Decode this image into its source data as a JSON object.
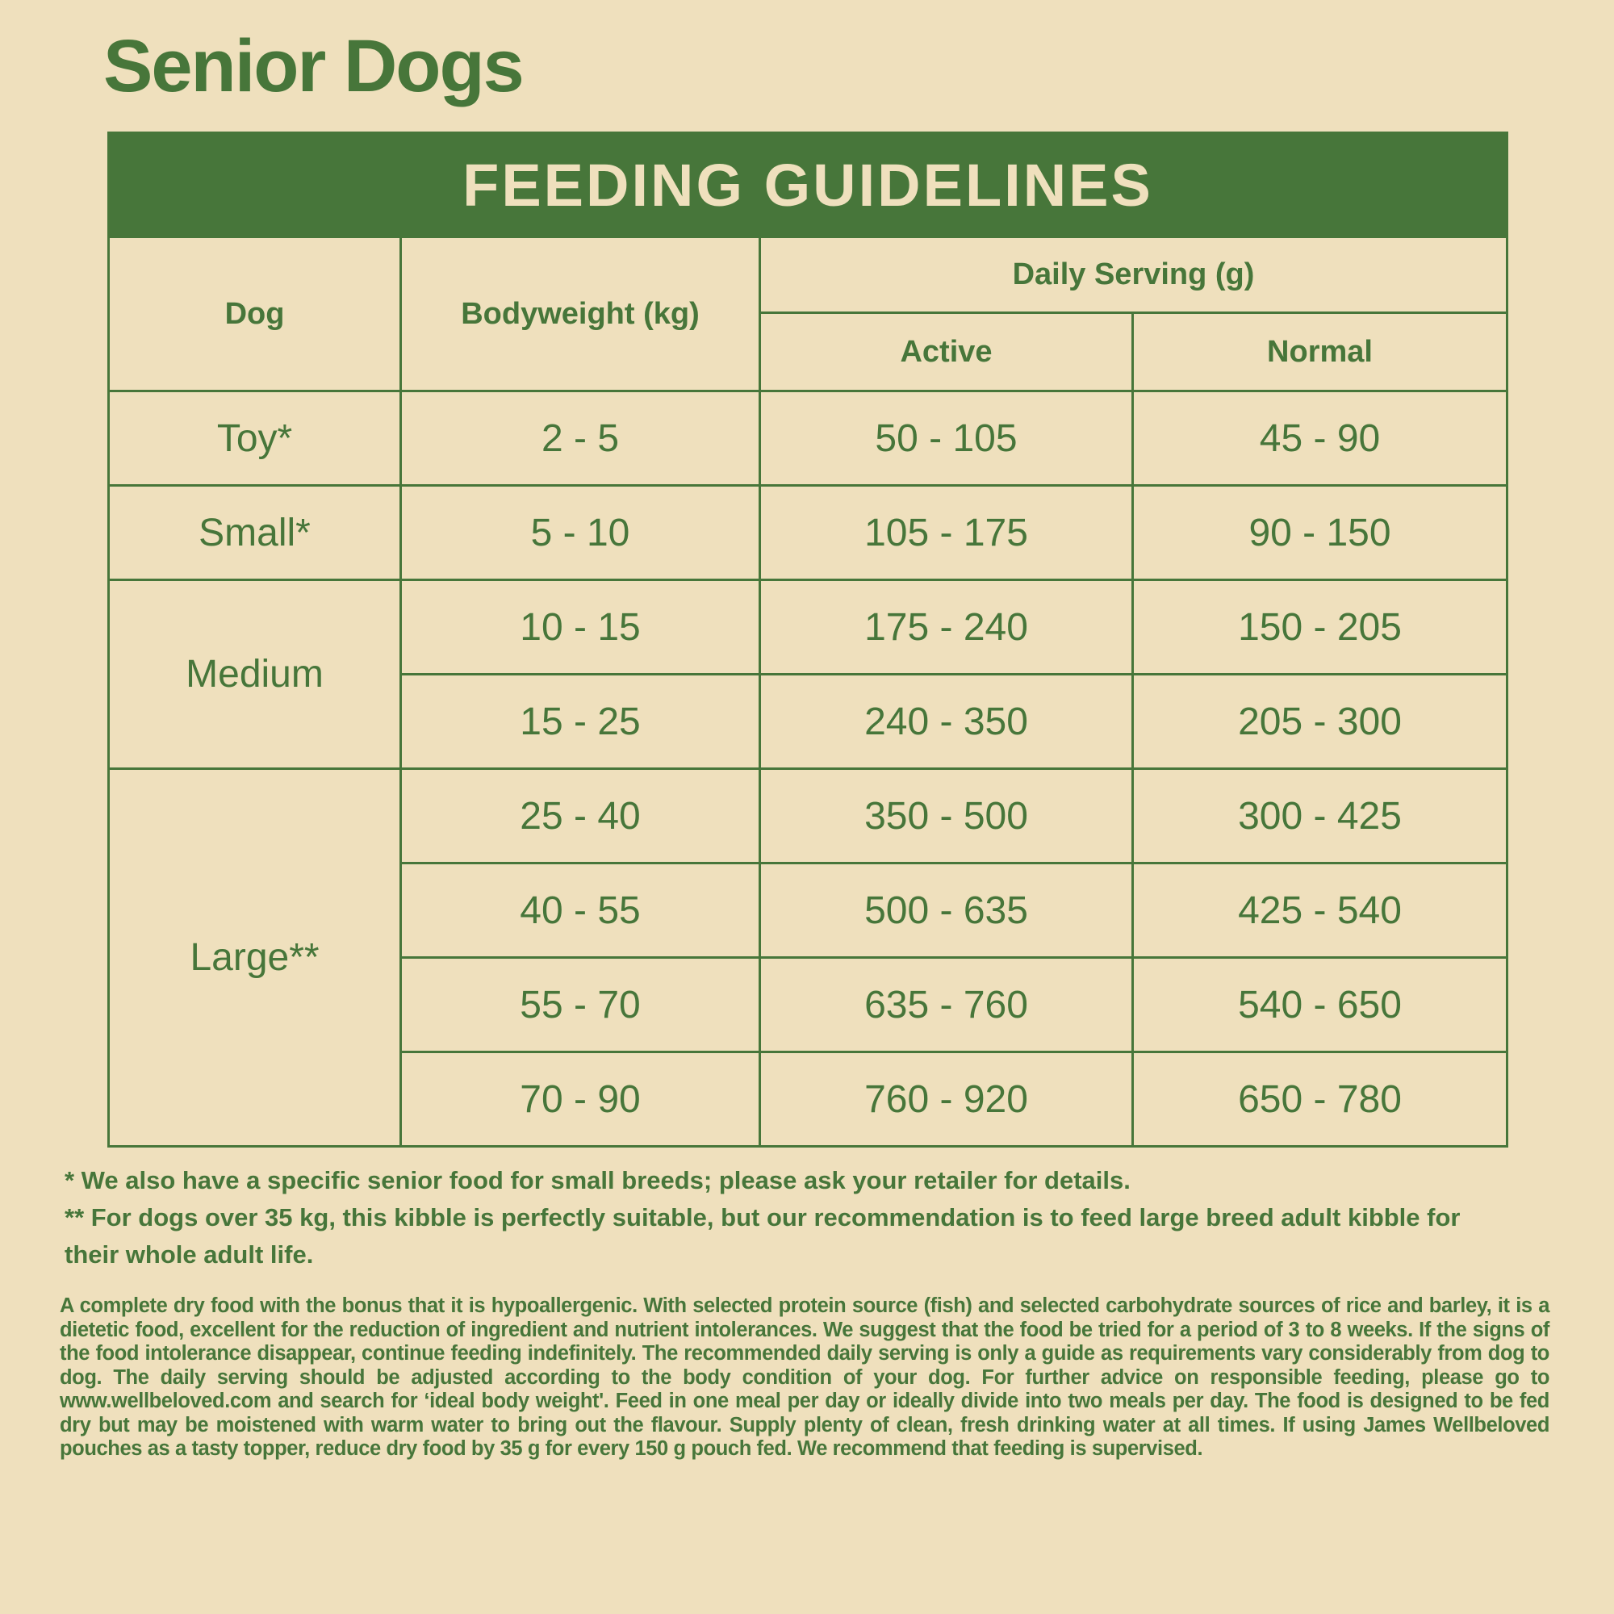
{
  "title": "Senior Dogs",
  "table": {
    "banner": "FEEDING GUIDELINES",
    "headers": {
      "dog": "Dog",
      "bodyweight": "Bodyweight (kg)",
      "daily_serving": "Daily Serving (g)",
      "active": "Active",
      "normal": "Normal"
    },
    "groups": [
      {
        "dog": "Toy*",
        "rows": [
          {
            "weight": "2 - 5",
            "active": "50 - 105",
            "normal": "45 - 90"
          }
        ]
      },
      {
        "dog": "Small*",
        "rows": [
          {
            "weight": "5 - 10",
            "active": "105 - 175",
            "normal": "90 - 150"
          }
        ]
      },
      {
        "dog": "Medium",
        "rows": [
          {
            "weight": "10 - 15",
            "active": "175 - 240",
            "normal": "150 - 205"
          },
          {
            "weight": "15 - 25",
            "active": "240 - 350",
            "normal": "205 - 300"
          }
        ]
      },
      {
        "dog": "Large**",
        "rows": [
          {
            "weight": "25 - 40",
            "active": "350 - 500",
            "normal": "300 - 425"
          },
          {
            "weight": "40 - 55",
            "active": "500 - 635",
            "normal": "425 - 540"
          },
          {
            "weight": "55 - 70",
            "active": "635 - 760",
            "normal": "540 - 650"
          },
          {
            "weight": "70 - 90",
            "active": "760 - 920",
            "normal": "650 - 780"
          }
        ]
      }
    ]
  },
  "footnotes": [
    "* We also have a specific senior food for small breeds; please ask your retailer for details.",
    "** For dogs over 35 kg, this kibble is perfectly suitable, but our recommendation is to feed large breed adult kibble for their whole adult life."
  ],
  "description": "A complete dry food with the bonus that it is hypoallergenic. With selected protein source (fish) and selected carbohydrate sources of rice and barley, it is a dietetic food, excellent for the reduction of ingredient and nutrient intolerances. We suggest that the food be tried for a period of 3 to 8 weeks. If the signs of the food intolerance disappear, continue feeding indefinitely. The recommended daily serving is only a guide as requirements vary considerably from dog to dog. The daily serving should be adjusted according to the body condition of your dog. For further advice on responsible feeding, please go to www.wellbeloved.com and search for ‘ideal body weight'. Feed in one meal per day or ideally divide into two meals per day. The food is designed to be fed dry but may be moistened with warm water to bring out the flavour. Supply plenty of clean, fresh drinking water at all times. If using James Wellbeloved pouches as a tasty topper, reduce dry food by 35 g for every 150 g pouch fed. We recommend that feeding is supervised.",
  "colors": {
    "background": "#efe0bd",
    "accent": "#47763a"
  }
}
